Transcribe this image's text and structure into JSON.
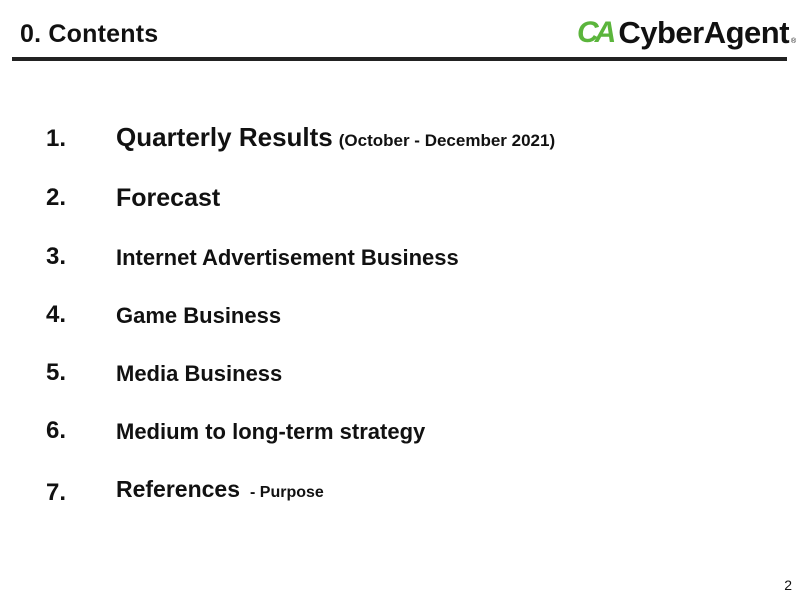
{
  "header": {
    "title": "0. Contents",
    "logo_text": "CyberAgent",
    "logo_mark": "CA",
    "logo_color": "#5bb53c"
  },
  "items": [
    {
      "num": "1.",
      "label": "Quarterly Results",
      "sub": "(October - December 2021)"
    },
    {
      "num": "2.",
      "label": "Forecast",
      "sub": ""
    },
    {
      "num": "3.",
      "label": "Internet Advertisement Business",
      "sub": ""
    },
    {
      "num": "4.",
      "label": "Game Business",
      "sub": ""
    },
    {
      "num": "5.",
      "label": "Media Business",
      "sub": ""
    },
    {
      "num": "6.",
      "label": "Medium to long-term strategy",
      "sub": ""
    },
    {
      "num": "7.",
      "label": "References",
      "sub": "- Purpose"
    }
  ],
  "footer": {
    "page_number": "2"
  }
}
